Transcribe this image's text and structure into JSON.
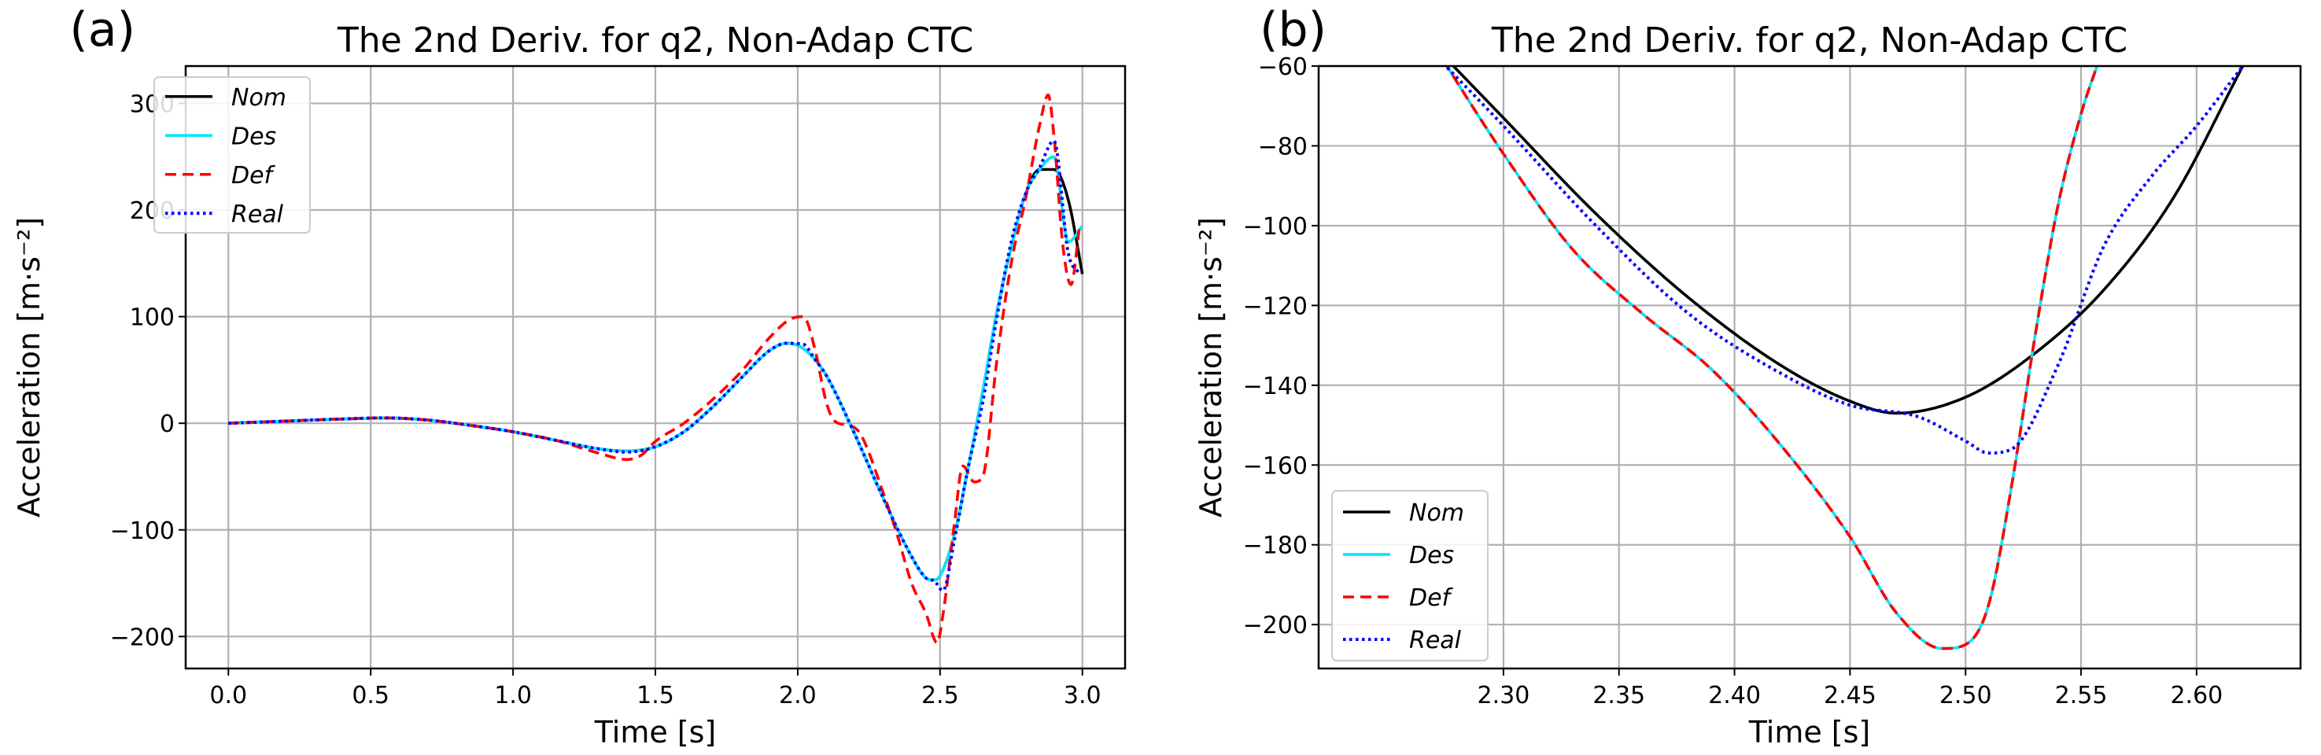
{
  "chart_data": [
    {
      "type": "line",
      "panel_label": "(a)",
      "title": "The 2nd Deriv. for q2, Non-Adap  CTC",
      "xlabel": "Time [s]",
      "ylabel": "Acceleration [m·s⁻²]",
      "xlim": [
        -0.15,
        3.15
      ],
      "ylim": [
        -230,
        335
      ],
      "x_ticks": [
        0.0,
        0.5,
        1.0,
        1.5,
        2.0,
        2.5,
        3.0
      ],
      "x_tick_labels": [
        "0.0",
        "0.5",
        "1.0",
        "1.5",
        "2.0",
        "2.5",
        "3.0"
      ],
      "y_ticks": [
        -200,
        -100,
        0,
        100,
        200,
        300
      ],
      "y_tick_labels": [
        "−200",
        "−100",
        "0",
        "100",
        "200",
        "300"
      ],
      "grid": true,
      "legend_position": "top-left",
      "series": [
        {
          "name": "Nom",
          "color": "#000000",
          "dash": "solid",
          "x": [
            0,
            0.2,
            0.4,
            0.55,
            0.7,
            0.85,
            1.0,
            1.15,
            1.3,
            1.4,
            1.5,
            1.6,
            1.7,
            1.8,
            1.9,
            1.96,
            2.0,
            2.05,
            2.1,
            2.2,
            2.3,
            2.4,
            2.45,
            2.48,
            2.5,
            2.55,
            2.6,
            2.65,
            2.7,
            2.75,
            2.8,
            2.85,
            2.9,
            2.95,
            3.0
          ],
          "y": [
            0,
            2,
            4,
            5,
            3,
            -2,
            -8,
            -16,
            -24,
            -26,
            -22,
            -8,
            15,
            42,
            68,
            75,
            73,
            63,
            45,
            -10,
            -70,
            -125,
            -145,
            -147,
            -143,
            -105,
            -40,
            30,
            105,
            165,
            215,
            238,
            238,
            210,
            140
          ]
        },
        {
          "name": "Des",
          "color": "#00e5ff",
          "dash": "solid",
          "x": [
            0,
            0.2,
            0.4,
            0.55,
            0.7,
            0.85,
            1.0,
            1.15,
            1.3,
            1.4,
            1.5,
            1.6,
            1.7,
            1.8,
            1.9,
            1.96,
            2.0,
            2.05,
            2.1,
            2.2,
            2.3,
            2.4,
            2.45,
            2.48,
            2.5,
            2.55,
            2.6,
            2.65,
            2.7,
            2.75,
            2.8,
            2.85,
            2.9,
            2.95,
            3.0
          ],
          "y": [
            0,
            2,
            4,
            5,
            3,
            -2,
            -8,
            -16,
            -24,
            -26,
            -22,
            -8,
            15,
            42,
            68,
            75,
            73,
            63,
            45,
            -10,
            -70,
            -125,
            -145,
            -147,
            -143,
            -105,
            -40,
            30,
            105,
            165,
            215,
            238,
            250,
            170,
            185
          ]
        },
        {
          "name": "Def",
          "color": "#ff0000",
          "dash": "dashed",
          "x": [
            0,
            0.2,
            0.4,
            0.55,
            0.7,
            0.85,
            1.0,
            1.15,
            1.3,
            1.4,
            1.45,
            1.5,
            1.6,
            1.7,
            1.8,
            1.9,
            1.97,
            2.02,
            2.06,
            2.1,
            2.13,
            2.18,
            2.22,
            2.3,
            2.35,
            2.4,
            2.45,
            2.49,
            2.51,
            2.55,
            2.58,
            2.62,
            2.65,
            2.7,
            2.75,
            2.8,
            2.85,
            2.88,
            2.9,
            2.93,
            2.96,
            2.99
          ],
          "y": [
            0,
            2,
            4,
            5,
            3,
            -2,
            -8,
            -16,
            -28,
            -34,
            -30,
            -17,
            0,
            22,
            48,
            80,
            97,
            100,
            70,
            20,
            2,
            -2,
            -10,
            -65,
            -105,
            -150,
            -178,
            -206,
            -180,
            -95,
            -40,
            -55,
            -50,
            60,
            150,
            210,
            280,
            308,
            270,
            170,
            130,
            185
          ]
        },
        {
          "name": "Real",
          "color": "#0000ff",
          "dash": "dotted",
          "x": [
            0,
            0.2,
            0.4,
            0.55,
            0.7,
            0.85,
            1.0,
            1.15,
            1.3,
            1.4,
            1.5,
            1.6,
            1.7,
            1.8,
            1.9,
            1.96,
            2.02,
            2.06,
            2.1,
            2.2,
            2.3,
            2.4,
            2.45,
            2.48,
            2.51,
            2.55,
            2.6,
            2.65,
            2.7,
            2.75,
            2.8,
            2.85,
            2.9,
            2.95,
            2.99
          ],
          "y": [
            0,
            2,
            4,
            5,
            3,
            -2,
            -8,
            -16,
            -24,
            -27,
            -22,
            -8,
            15,
            42,
            68,
            75,
            74,
            60,
            45,
            -10,
            -70,
            -125,
            -145,
            -148,
            -157,
            -110,
            -40,
            20,
            100,
            170,
            215,
            240,
            265,
            160,
            140
          ]
        }
      ]
    },
    {
      "type": "line",
      "panel_label": "(b)",
      "title": "The 2nd Deriv. for q2, Non-Adap  CTC",
      "xlabel": "Time [s]",
      "ylabel": "Acceleration [m·s⁻²]",
      "xlim": [
        2.22,
        2.645
      ],
      "ylim": [
        -211,
        -60
      ],
      "x_ticks": [
        2.3,
        2.35,
        2.4,
        2.45,
        2.5,
        2.55,
        2.6
      ],
      "x_tick_labels": [
        "2.30",
        "2.35",
        "2.40",
        "2.45",
        "2.50",
        "2.55",
        "2.60"
      ],
      "y_ticks": [
        -200,
        -180,
        -160,
        -140,
        -120,
        -100,
        -80,
        -60
      ],
      "y_tick_labels": [
        "−200",
        "−180",
        "−160",
        "−140",
        "−120",
        "−100",
        "−80",
        "−60"
      ],
      "grid": true,
      "legend_position": "bottom-left",
      "series": [
        {
          "name": "Nom",
          "color": "#000000",
          "dash": "solid",
          "x": [
            2.27,
            2.3,
            2.34,
            2.38,
            2.42,
            2.45,
            2.47,
            2.5,
            2.53,
            2.56,
            2.59,
            2.62
          ],
          "y": [
            -55,
            -73,
            -97,
            -118,
            -135,
            -144,
            -147,
            -143,
            -132,
            -116,
            -93,
            -60
          ]
        },
        {
          "name": "Des",
          "color": "#00e5ff",
          "dash": "solid",
          "x": [
            2.27,
            2.3,
            2.33,
            2.36,
            2.39,
            2.42,
            2.45,
            2.47,
            2.49,
            2.5,
            2.51,
            2.52,
            2.53,
            2.54,
            2.55,
            2.56
          ],
          "y": [
            -55,
            -82,
            -106,
            -122,
            -136,
            -155,
            -178,
            -197,
            -206,
            -205,
            -195,
            -165,
            -128,
            -95,
            -72,
            -55
          ]
        },
        {
          "name": "Def",
          "color": "#ff0000",
          "dash": "dashed",
          "x": [
            2.27,
            2.3,
            2.33,
            2.36,
            2.39,
            2.42,
            2.45,
            2.47,
            2.49,
            2.5,
            2.51,
            2.52,
            2.53,
            2.54,
            2.55,
            2.56
          ],
          "y": [
            -55,
            -82,
            -106,
            -122,
            -136,
            -155,
            -178,
            -197,
            -206,
            -205,
            -195,
            -165,
            -128,
            -95,
            -72,
            -55
          ]
        },
        {
          "name": "Real",
          "color": "#0000ff",
          "dash": "dotted",
          "x": [
            2.27,
            2.3,
            2.34,
            2.38,
            2.42,
            2.45,
            2.48,
            2.5,
            2.51,
            2.52,
            2.54,
            2.56,
            2.58,
            2.6,
            2.62
          ],
          "y": [
            -57,
            -75,
            -100,
            -122,
            -137,
            -145,
            -148,
            -154,
            -157,
            -156,
            -135,
            -105,
            -88,
            -75,
            -60
          ]
        }
      ]
    }
  ]
}
